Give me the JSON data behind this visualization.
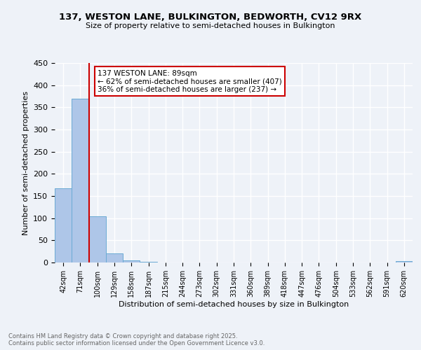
{
  "title1": "137, WESTON LANE, BULKINGTON, BEDWORTH, CV12 9RX",
  "title2": "Size of property relative to semi-detached houses in Bulkington",
  "xlabel": "Distribution of semi-detached houses by size in Bulkington",
  "ylabel": "Number of semi-detached properties",
  "bin_labels": [
    "42sqm",
    "71sqm",
    "100sqm",
    "129sqm",
    "158sqm",
    "187sqm",
    "215sqm",
    "244sqm",
    "273sqm",
    "302sqm",
    "331sqm",
    "360sqm",
    "389sqm",
    "418sqm",
    "447sqm",
    "476sqm",
    "504sqm",
    "533sqm",
    "562sqm",
    "591sqm",
    "620sqm"
  ],
  "bar_values": [
    168,
    370,
    105,
    20,
    5,
    1,
    0,
    0,
    0,
    0,
    0,
    0,
    0,
    0,
    0,
    0,
    0,
    0,
    0,
    0,
    3
  ],
  "bar_color": "#aec6e8",
  "bar_edge_color": "#6aaad4",
  "annotation_title": "137 WESTON LANE: 89sqm",
  "annotation_line1": "← 62% of semi-detached houses are smaller (407)",
  "annotation_line2": "36% of semi-detached houses are larger (237) →",
  "annotation_box_color": "#ffffff",
  "annotation_box_edge": "#cc0000",
  "highlight_line_color": "#cc0000",
  "ylim": [
    0,
    450
  ],
  "yticks": [
    0,
    50,
    100,
    150,
    200,
    250,
    300,
    350,
    400,
    450
  ],
  "footer1": "Contains HM Land Registry data © Crown copyright and database right 2025.",
  "footer2": "Contains public sector information licensed under the Open Government Licence v3.0.",
  "bg_color": "#eef2f8",
  "grid_color": "#ffffff"
}
